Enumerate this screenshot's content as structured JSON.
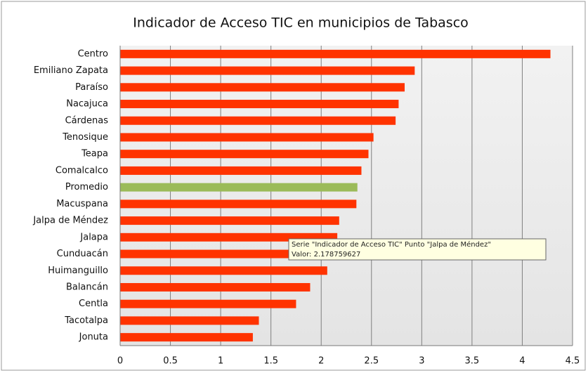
{
  "chart_data": {
    "type": "barh",
    "title": "Indicador de Acceso TIC en municipios de Tabasco",
    "series_name": "Indicador de Acceso TIC",
    "categories": [
      "Centro",
      "Emiliano Zapata",
      "Paraíso",
      "Nacajuca",
      "Cárdenas",
      "Tenosique",
      "Teapa",
      "Comalcalco",
      "Promedio",
      "Macuspana",
      "Jalpa de Méndez",
      "Jalapa",
      "Cunduacán",
      "Huimanguillo",
      "Balancán",
      "Centla",
      "Tacotalpa",
      "Jonuta"
    ],
    "values": [
      4.28,
      2.93,
      2.83,
      2.77,
      2.74,
      2.52,
      2.47,
      2.4,
      2.36,
      2.35,
      2.178759627,
      2.16,
      2.12,
      2.06,
      1.89,
      1.75,
      1.38,
      1.32
    ],
    "colors": [
      "#ff3300",
      "#ff3300",
      "#ff3300",
      "#ff3300",
      "#ff3300",
      "#ff3300",
      "#ff3300",
      "#ff3300",
      "#9bbb59",
      "#ff3300",
      "#ff3300",
      "#ff3300",
      "#ff3300",
      "#ff3300",
      "#ff3300",
      "#ff3300",
      "#ff3300",
      "#ff3300"
    ],
    "xlim": [
      0,
      4.5
    ],
    "xticks": [
      0,
      0.5,
      1,
      1.5,
      2,
      2.5,
      3,
      3.5,
      4,
      4.5
    ],
    "grid": true,
    "tooltip": {
      "lines": [
        "Serie \"Indicador de Acceso TIC\" Punto \"Jalpa de Méndez\"",
        "Valor: 2.178759627"
      ]
    }
  }
}
